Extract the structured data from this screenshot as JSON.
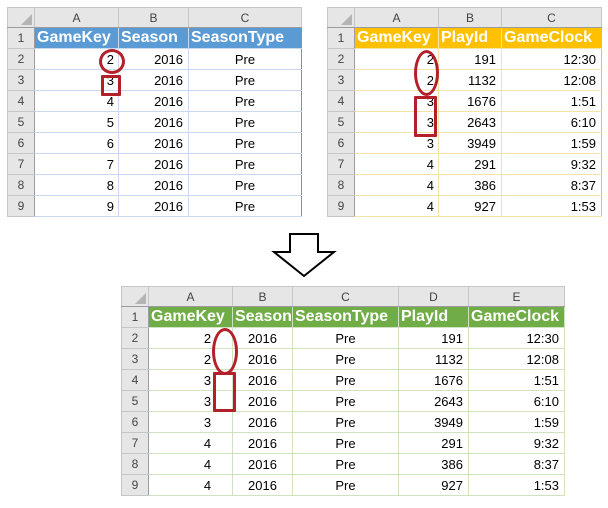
{
  "top_left": {
    "col_letters": [
      "A",
      "B",
      "C"
    ],
    "headers": [
      "GameKey",
      "Season",
      "SeasonType"
    ],
    "header_color": "#5b9bd5",
    "rows": [
      {
        "num": "2",
        "cells": [
          "2",
          "2016",
          "Pre"
        ]
      },
      {
        "num": "3",
        "cells": [
          "3",
          "2016",
          "Pre"
        ]
      },
      {
        "num": "4",
        "cells": [
          "4",
          "2016",
          "Pre"
        ]
      },
      {
        "num": "5",
        "cells": [
          "5",
          "2016",
          "Pre"
        ]
      },
      {
        "num": "6",
        "cells": [
          "6",
          "2016",
          "Pre"
        ]
      },
      {
        "num": "7",
        "cells": [
          "7",
          "2016",
          "Pre"
        ]
      },
      {
        "num": "8",
        "cells": [
          "8",
          "2016",
          "Pre"
        ]
      },
      {
        "num": "9",
        "cells": [
          "9",
          "2016",
          "Pre"
        ]
      }
    ]
  },
  "top_right": {
    "col_letters": [
      "A",
      "B",
      "C"
    ],
    "headers": [
      "GameKey",
      "PlayId",
      "GameClock"
    ],
    "header_color": "#ffc000",
    "rows": [
      {
        "num": "2",
        "cells": [
          "2",
          "191",
          "12:30"
        ]
      },
      {
        "num": "3",
        "cells": [
          "2",
          "1132",
          "12:08"
        ]
      },
      {
        "num": "4",
        "cells": [
          "3",
          "1676",
          "1:51"
        ]
      },
      {
        "num": "5",
        "cells": [
          "3",
          "2643",
          "6:10"
        ]
      },
      {
        "num": "6",
        "cells": [
          "3",
          "3949",
          "1:59"
        ]
      },
      {
        "num": "7",
        "cells": [
          "4",
          "291",
          "9:32"
        ]
      },
      {
        "num": "8",
        "cells": [
          "4",
          "386",
          "8:37"
        ]
      },
      {
        "num": "9",
        "cells": [
          "4",
          "927",
          "1:53"
        ]
      }
    ]
  },
  "merged": {
    "col_letters": [
      "A",
      "B",
      "C",
      "D",
      "E"
    ],
    "headers": [
      "GameKey",
      "Season",
      "SeasonType",
      "PlayId",
      "GameClock"
    ],
    "header_color": "#70ad47",
    "rows": [
      {
        "num": "2",
        "cells": [
          "2",
          "2016",
          "Pre",
          "191",
          "12:30"
        ]
      },
      {
        "num": "3",
        "cells": [
          "2",
          "2016",
          "Pre",
          "1132",
          "12:08"
        ]
      },
      {
        "num": "4",
        "cells": [
          "3",
          "2016",
          "Pre",
          "1676",
          "1:51"
        ]
      },
      {
        "num": "5",
        "cells": [
          "3",
          "2016",
          "Pre",
          "2643",
          "6:10"
        ]
      },
      {
        "num": "6",
        "cells": [
          "3",
          "2016",
          "Pre",
          "3949",
          "1:59"
        ]
      },
      {
        "num": "7",
        "cells": [
          "4",
          "2016",
          "Pre",
          "291",
          "9:32"
        ]
      },
      {
        "num": "8",
        "cells": [
          "4",
          "2016",
          "Pre",
          "386",
          "8:37"
        ]
      },
      {
        "num": "9",
        "cells": [
          "4",
          "2016",
          "Pre",
          "927",
          "1:53"
        ]
      }
    ]
  },
  "header_row_num": "1",
  "highlight_color": "#b3202a",
  "arrow_icon": "down-arrow-icon"
}
